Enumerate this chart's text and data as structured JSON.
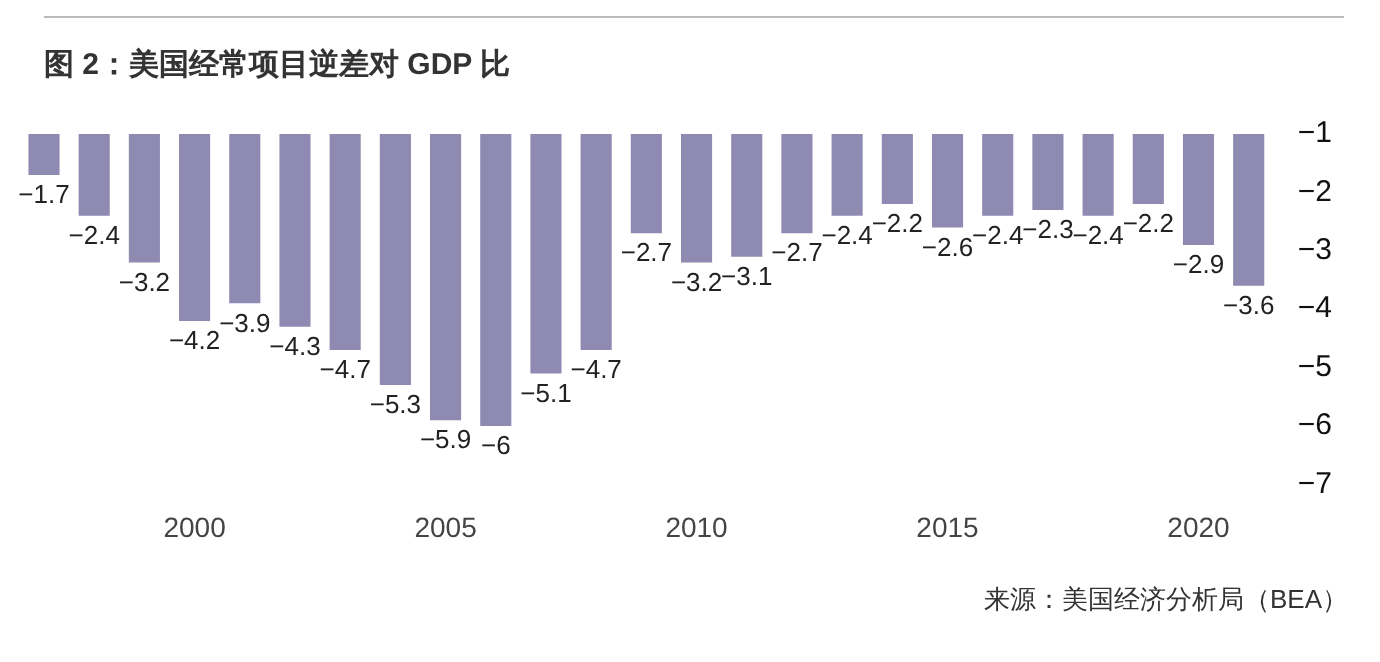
{
  "chart_data": {
    "type": "bar",
    "title": "图 2：美国经常项目逆差对 GDP 比",
    "categories": [
      null,
      null,
      null,
      "2000",
      null,
      null,
      null,
      null,
      "2005",
      null,
      null,
      null,
      null,
      "2010",
      null,
      null,
      null,
      null,
      "2015",
      null,
      null,
      null,
      null,
      "2020",
      null
    ],
    "values": [
      -1.7,
      -2.4,
      -3.2,
      -4.2,
      -3.9,
      -4.3,
      -4.7,
      -5.3,
      -5.9,
      -6,
      -5.1,
      -4.7,
      -2.7,
      -3.2,
      -3.1,
      -2.7,
      -2.4,
      -2.2,
      -2.6,
      -2.4,
      -2.3,
      -2.4,
      -2.2,
      -2.9,
      -3.6
    ],
    "color": "#8f8ab2",
    "ylim": [
      -7,
      -1
    ],
    "yticks": [
      -7,
      -6,
      -5,
      -4,
      -3,
      -2,
      -1
    ],
    "grid": false,
    "legend": false,
    "data_labels": true,
    "annotations": [
      "来源：美国经济分析局（BEA）"
    ]
  }
}
